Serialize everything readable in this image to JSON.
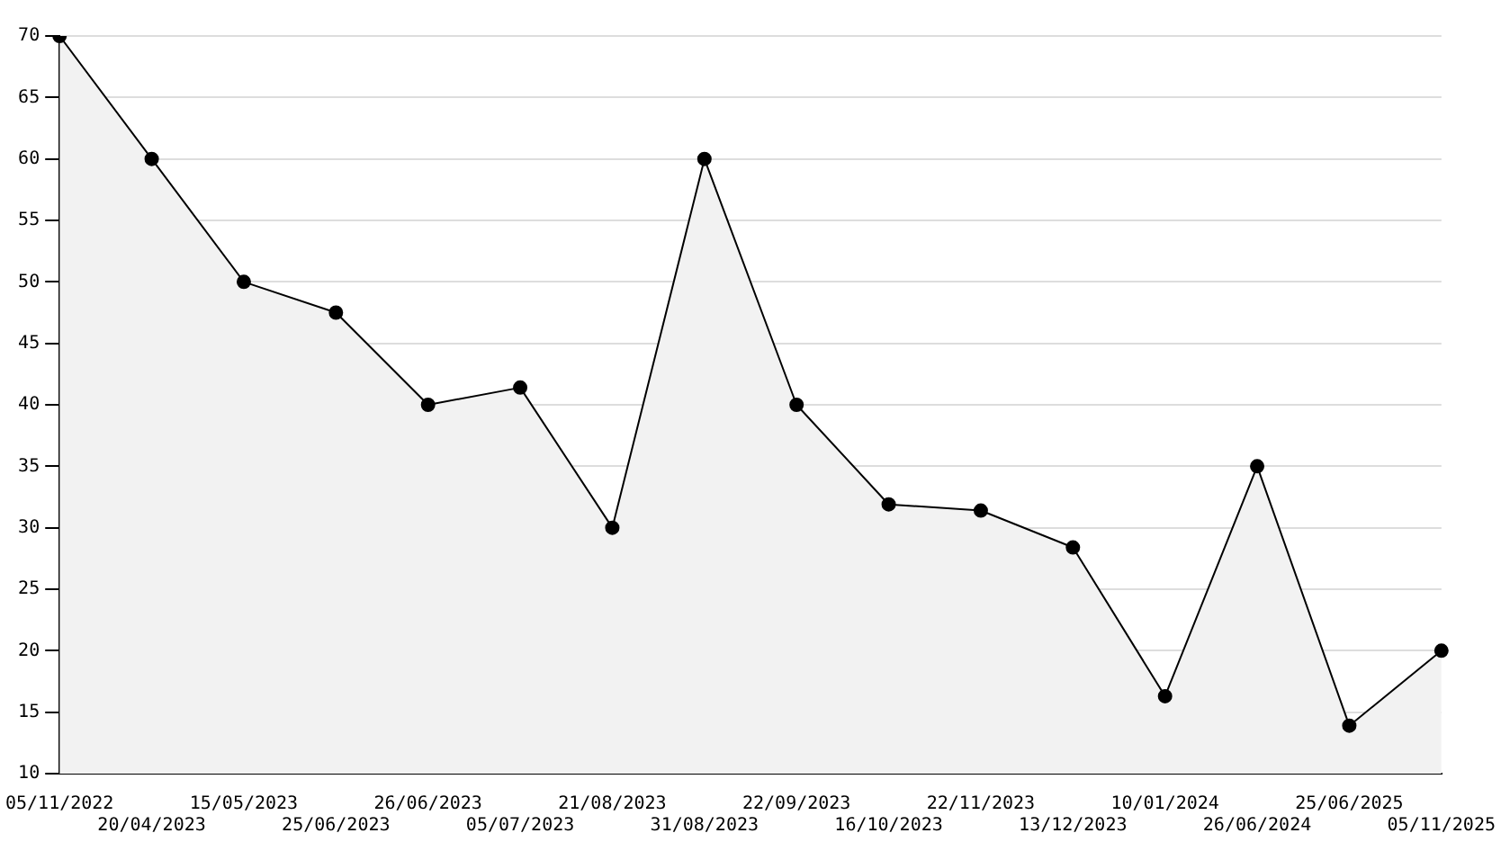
{
  "chart_data": {
    "type": "area",
    "categories": [
      "05/11/2022",
      "20/04/2023",
      "15/05/2023",
      "25/06/2023",
      "26/06/2023",
      "05/07/2023",
      "21/08/2023",
      "31/08/2023",
      "22/09/2023",
      "16/10/2023",
      "22/11/2023",
      "13/12/2023",
      "10/01/2024",
      "26/06/2024",
      "25/06/2025",
      "05/11/2025"
    ],
    "series": [
      {
        "color": "#000000",
        "values": [
          70,
          60,
          50,
          47.5,
          40,
          41.4,
          30,
          60,
          40,
          31.9,
          31.4,
          28.4,
          16.3,
          35,
          13.9,
          20
        ]
      }
    ],
    "ylim": [
      10,
      70
    ],
    "yticks": [
      10,
      15,
      20,
      25,
      30,
      35,
      40,
      45,
      50,
      55,
      60,
      65,
      70
    ],
    "grid": "y",
    "marker": "circle",
    "line_style": "solid",
    "legend": false
  }
}
